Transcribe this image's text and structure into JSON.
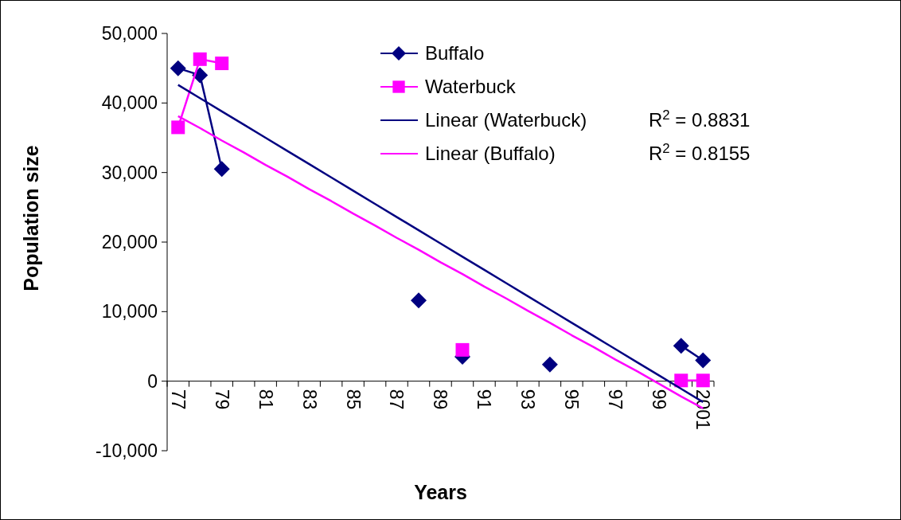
{
  "chart_data": {
    "type": "line",
    "xlabel": "Years",
    "ylabel": "Population size",
    "categories": [
      "77",
      null,
      "79",
      null,
      "81",
      null,
      "83",
      null,
      "85",
      null,
      "87",
      null,
      "89",
      null,
      "91",
      null,
      "93",
      null,
      "95",
      null,
      "97",
      null,
      "99",
      null,
      "2001"
    ],
    "ylim": [
      -10000,
      50000
    ],
    "yticks": [
      {
        "value": -10000,
        "label": "-10,000"
      },
      0,
      {
        "value": 10000,
        "label": "10,000"
      },
      {
        "value": 20000,
        "label": "20,000"
      },
      {
        "value": 30000,
        "label": "30,000"
      },
      {
        "value": 40000,
        "label": "40,000"
      },
      {
        "value": 50000,
        "label": "50,000"
      }
    ],
    "grid": false,
    "legend": "top right",
    "series": [
      {
        "name": "Buffalo",
        "color": "#000080",
        "marker": "diamond",
        "values": [
          45000,
          44000,
          30500,
          null,
          null,
          null,
          null,
          null,
          null,
          null,
          null,
          11600,
          null,
          3500,
          null,
          null,
          null,
          2400,
          null,
          null,
          null,
          null,
          null,
          5100,
          3000
        ]
      },
      {
        "name": "Waterbuck",
        "color": "#ff00ff",
        "marker": "square",
        "values": [
          36500,
          46300,
          45700,
          null,
          null,
          null,
          null,
          null,
          null,
          null,
          null,
          null,
          null,
          4500,
          null,
          null,
          null,
          null,
          null,
          null,
          null,
          null,
          null,
          100,
          100
        ]
      },
      {
        "name": "Linear (Waterbuck)",
        "color": "#000080",
        "type": "line",
        "marker": "none",
        "values": [
          42600,
          40700,
          38800,
          36900,
          35000,
          33100,
          31200,
          29300,
          27400,
          25500,
          23600,
          21700,
          19800,
          17900,
          16000,
          14100,
          12200,
          10300,
          8400,
          6500,
          4600,
          2700,
          800,
          -1100,
          -3000
        ]
      },
      {
        "name": "Linear (Buffalo)",
        "color": "#ff00ff",
        "type": "line",
        "marker": "none",
        "values": [
          38100,
          36400,
          34600,
          32900,
          31100,
          29400,
          27600,
          25900,
          24100,
          22400,
          20600,
          18900,
          17100,
          15400,
          13600,
          11900,
          10100,
          8400,
          6600,
          4900,
          3100,
          1400,
          -400,
          -2200,
          -3900
        ]
      }
    ],
    "annotations": [
      "R$^{2}$ = 0.8831",
      "R$^{2}$ = 0.8155"
    ]
  }
}
